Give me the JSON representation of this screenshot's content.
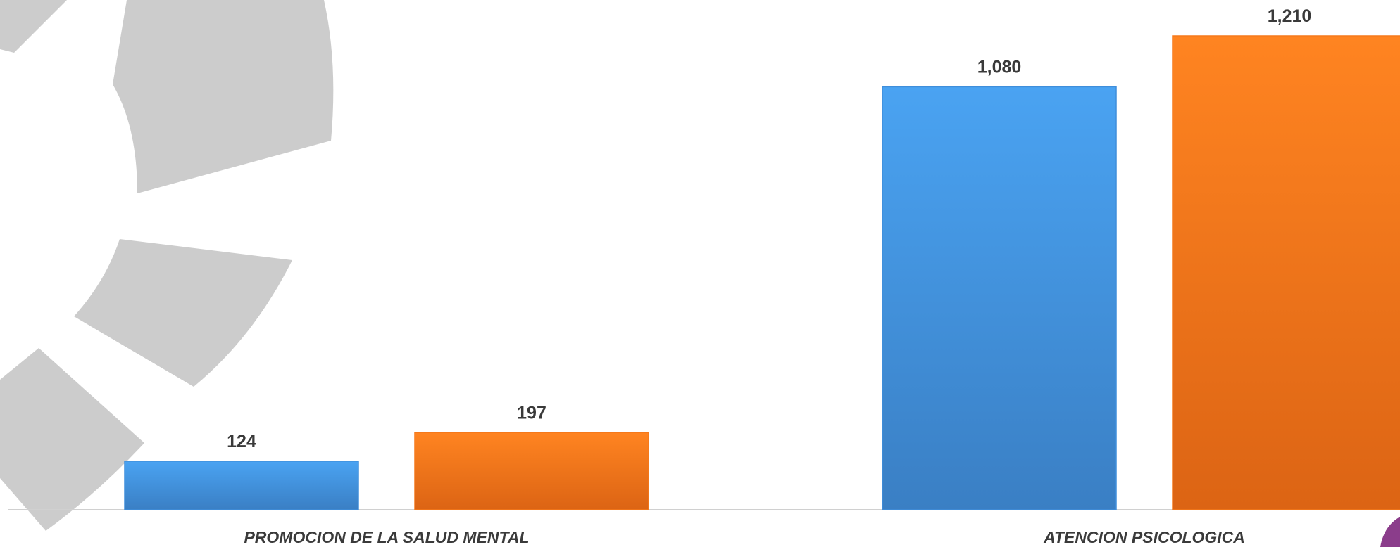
{
  "chart_data": {
    "type": "bar",
    "categories": [
      "PROMOCION DE LA SALUD MENTAL",
      "ATENCION PSICOLOGICA"
    ],
    "series": [
      {
        "color": "#3f8edb",
        "values": [
          124,
          1080
        ],
        "value_labels": [
          "124",
          "1,080"
        ]
      },
      {
        "color": "#f5791b",
        "values": [
          197,
          1210
        ],
        "value_labels": [
          "197",
          "1,210"
        ]
      }
    ]
  }
}
